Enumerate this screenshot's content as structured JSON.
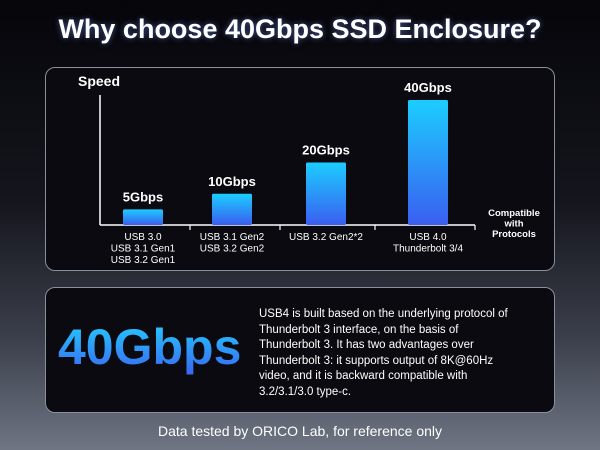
{
  "header": {
    "title": "Why choose 40Gbps SSD Enclosure?"
  },
  "chart_data": {
    "type": "bar",
    "y_label": "Speed",
    "x_label": "Compatible\nwith\nProtocols",
    "categories": [
      "USB 3.0\nUSB 3.1 Gen1\nUSB 3.2 Gen1",
      "USB 3.1 Gen2\nUSB 3.2 Gen2",
      "USB 3.2 Gen2*2",
      "USB 4.0\nThunderbolt 3/4"
    ],
    "values": [
      5,
      10,
      20,
      40
    ],
    "value_labels": [
      "5Gbps",
      "10Gbps",
      "20Gbps",
      "40Gbps"
    ],
    "color": [
      "#1ccdff",
      "#3a5ef0"
    ],
    "ylim": [
      0,
      40
    ]
  },
  "info": {
    "highlight": "40Gbps",
    "description": [
      "USB4 is built based on the underlying protocol of",
      "Thunderbolt 3 interface, on the basis of",
      "Thunderbolt 3. It has two advantages over",
      "Thunderbolt 3: it supports output of 8K@60Hz",
      "video, and it is backward compatible with",
      "3.2/3.1/3.0 type-c."
    ]
  },
  "footer": {
    "note": "Data tested by ORICO Lab, for reference only"
  }
}
